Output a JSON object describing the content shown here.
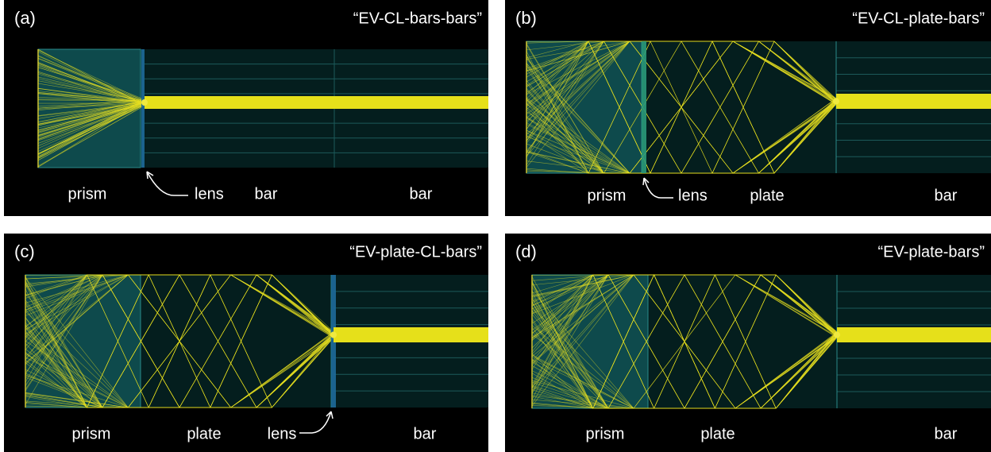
{
  "panels": [
    {
      "label": "(a)",
      "title": "“EV-CL-bars-bars”",
      "regions": [
        "prism",
        "lens",
        "bar",
        "bar"
      ]
    },
    {
      "label": "(b)",
      "title": "“EV-CL-plate-bars”",
      "regions": [
        "prism",
        "lens",
        "plate",
        "bar"
      ]
    },
    {
      "label": "(c)",
      "title": "“EV-plate-CL-bars”",
      "regions": [
        "prism",
        "plate",
        "lens",
        "bar"
      ]
    },
    {
      "label": "(d)",
      "title": "“EV-plate-bars”",
      "regions": [
        "prism",
        "plate",
        "bar"
      ]
    }
  ]
}
